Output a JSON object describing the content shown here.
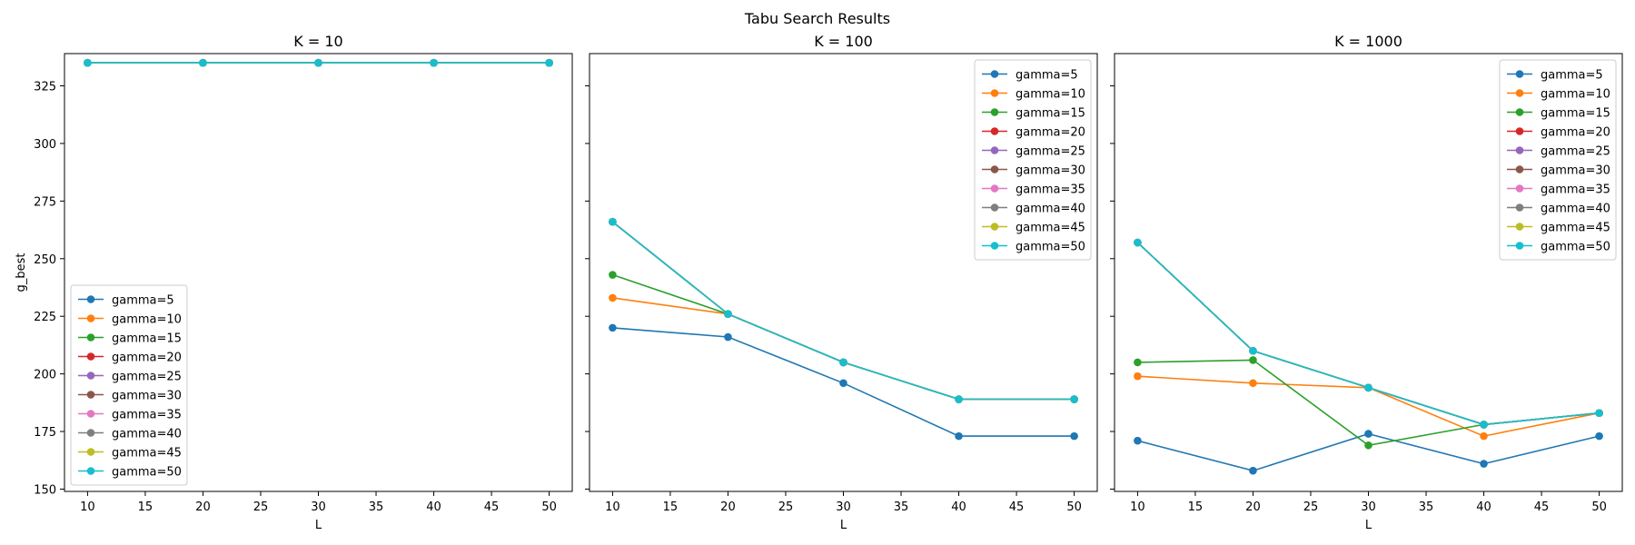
{
  "figure": {
    "suptitle": "Tabu Search Results"
  },
  "chart_data": [
    {
      "type": "line",
      "title": "K = 10",
      "xlabel": "L",
      "ylabel": "g_best",
      "x": [
        10,
        20,
        30,
        40,
        50
      ],
      "xticks": [
        10,
        15,
        20,
        25,
        30,
        35,
        40,
        45,
        50
      ],
      "yticks": [
        150,
        175,
        200,
        225,
        250,
        275,
        300,
        325
      ],
      "xlim": [
        8,
        52
      ],
      "ylim": [
        149,
        339
      ],
      "legend": "lower-left",
      "series": [
        {
          "name": "gamma=5",
          "color": "#1f77b4",
          "values": [
            335,
            335,
            335,
            335,
            335
          ]
        },
        {
          "name": "gamma=10",
          "color": "#ff7f0e",
          "values": [
            335,
            335,
            335,
            335,
            335
          ]
        },
        {
          "name": "gamma=15",
          "color": "#2ca02c",
          "values": [
            335,
            335,
            335,
            335,
            335
          ]
        },
        {
          "name": "gamma=20",
          "color": "#d62728",
          "values": [
            335,
            335,
            335,
            335,
            335
          ]
        },
        {
          "name": "gamma=25",
          "color": "#9467bd",
          "values": [
            335,
            335,
            335,
            335,
            335
          ]
        },
        {
          "name": "gamma=30",
          "color": "#8c564b",
          "values": [
            335,
            335,
            335,
            335,
            335
          ]
        },
        {
          "name": "gamma=35",
          "color": "#e377c2",
          "values": [
            335,
            335,
            335,
            335,
            335
          ]
        },
        {
          "name": "gamma=40",
          "color": "#7f7f7f",
          "values": [
            335,
            335,
            335,
            335,
            335
          ]
        },
        {
          "name": "gamma=45",
          "color": "#bcbd22",
          "values": [
            335,
            335,
            335,
            335,
            335
          ]
        },
        {
          "name": "gamma=50",
          "color": "#17becf",
          "values": [
            335,
            335,
            335,
            335,
            335
          ]
        }
      ]
    },
    {
      "type": "line",
      "title": "K = 100",
      "xlabel": "L",
      "ylabel": "",
      "x": [
        10,
        20,
        30,
        40,
        50
      ],
      "xticks": [
        10,
        15,
        20,
        25,
        30,
        35,
        40,
        45,
        50
      ],
      "yticks": [],
      "xlim": [
        8,
        52
      ],
      "ylim": [
        149,
        339
      ],
      "legend": "upper-right",
      "series": [
        {
          "name": "gamma=5",
          "color": "#1f77b4",
          "values": [
            220,
            216,
            196,
            173,
            173
          ]
        },
        {
          "name": "gamma=10",
          "color": "#ff7f0e",
          "values": [
            233,
            226,
            205,
            189,
            189
          ]
        },
        {
          "name": "gamma=15",
          "color": "#2ca02c",
          "values": [
            243,
            226,
            205,
            189,
            189
          ]
        },
        {
          "name": "gamma=20",
          "color": "#d62728",
          "values": [
            266,
            226,
            205,
            189,
            189
          ]
        },
        {
          "name": "gamma=25",
          "color": "#9467bd",
          "values": [
            266,
            226,
            205,
            189,
            189
          ]
        },
        {
          "name": "gamma=30",
          "color": "#8c564b",
          "values": [
            266,
            226,
            205,
            189,
            189
          ]
        },
        {
          "name": "gamma=35",
          "color": "#e377c2",
          "values": [
            266,
            226,
            205,
            189,
            189
          ]
        },
        {
          "name": "gamma=40",
          "color": "#7f7f7f",
          "values": [
            266,
            226,
            205,
            189,
            189
          ]
        },
        {
          "name": "gamma=45",
          "color": "#bcbd22",
          "values": [
            266,
            226,
            205,
            189,
            189
          ]
        },
        {
          "name": "gamma=50",
          "color": "#17becf",
          "values": [
            266,
            226,
            205,
            189,
            189
          ]
        }
      ]
    },
    {
      "type": "line",
      "title": "K = 1000",
      "xlabel": "L",
      "ylabel": "",
      "x": [
        10,
        20,
        30,
        40,
        50
      ],
      "xticks": [
        10,
        15,
        20,
        25,
        30,
        35,
        40,
        45,
        50
      ],
      "yticks": [],
      "xlim": [
        8,
        52
      ],
      "ylim": [
        149,
        339
      ],
      "legend": "upper-right",
      "series": [
        {
          "name": "gamma=5",
          "color": "#1f77b4",
          "values": [
            171,
            158,
            174,
            161,
            173
          ]
        },
        {
          "name": "gamma=10",
          "color": "#ff7f0e",
          "values": [
            199,
            196,
            194,
            173,
            183
          ]
        },
        {
          "name": "gamma=15",
          "color": "#2ca02c",
          "values": [
            205,
            206,
            169,
            178,
            183
          ]
        },
        {
          "name": "gamma=20",
          "color": "#d62728",
          "values": [
            257,
            210,
            194,
            178,
            183
          ]
        },
        {
          "name": "gamma=25",
          "color": "#9467bd",
          "values": [
            257,
            210,
            194,
            178,
            183
          ]
        },
        {
          "name": "gamma=30",
          "color": "#8c564b",
          "values": [
            257,
            210,
            194,
            178,
            183
          ]
        },
        {
          "name": "gamma=35",
          "color": "#e377c2",
          "values": [
            257,
            210,
            194,
            178,
            183
          ]
        },
        {
          "name": "gamma=40",
          "color": "#7f7f7f",
          "values": [
            257,
            210,
            194,
            178,
            183
          ]
        },
        {
          "name": "gamma=45",
          "color": "#bcbd22",
          "values": [
            257,
            210,
            194,
            178,
            183
          ]
        },
        {
          "name": "gamma=50",
          "color": "#17becf",
          "values": [
            257,
            210,
            194,
            178,
            183
          ]
        }
      ]
    }
  ]
}
